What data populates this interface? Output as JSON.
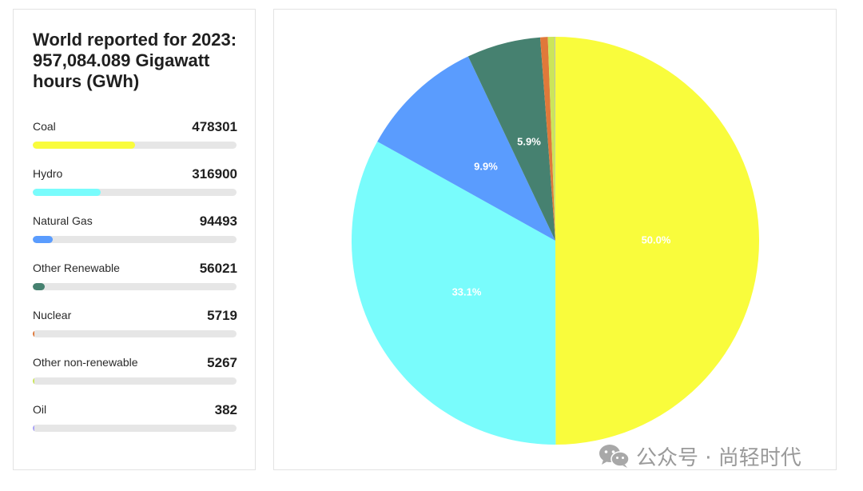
{
  "title": "World reported for 2023: 957,084.089 Gigawatt hours (GWh)",
  "items": [
    {
      "label": "Coal",
      "value": "478301",
      "color": "#f9fc3c"
    },
    {
      "label": "Hydro",
      "value": "316900",
      "color": "#79fcfc"
    },
    {
      "label": "Natural Gas",
      "value": "94493",
      "color": "#5a9cfe"
    },
    {
      "label": "Other Renewable",
      "value": "56021",
      "color": "#468170"
    },
    {
      "label": "Nuclear",
      "value": "5719",
      "color": "#e0793a"
    },
    {
      "label": "Other non-renewable",
      "value": "5267",
      "color": "#cbe55a"
    },
    {
      "label": "Oil",
      "value": "382",
      "color": "#a9a2f7"
    }
  ],
  "watermark": {
    "text": "公众号 · 尚轻时代",
    "icon": "wechat-icon"
  },
  "chart_data": {
    "type": "pie",
    "title": "",
    "categories": [
      "Coal",
      "Hydro",
      "Natural Gas",
      "Other Renewable",
      "Nuclear",
      "Other non-renewable",
      "Oil"
    ],
    "values": [
      478301,
      316900,
      94493,
      56021,
      5719,
      5267,
      382
    ],
    "colors": [
      "#f9fc3c",
      "#79fcfc",
      "#5a9cfe",
      "#468170",
      "#e0793a",
      "#cbe55a",
      "#a9a2f7"
    ],
    "data_labels": [
      "50.0%",
      "33.1%",
      "9.9%",
      "5.9%",
      "",
      "",
      ""
    ],
    "start_angle": "12 o'clock",
    "direction": "clockwise"
  }
}
